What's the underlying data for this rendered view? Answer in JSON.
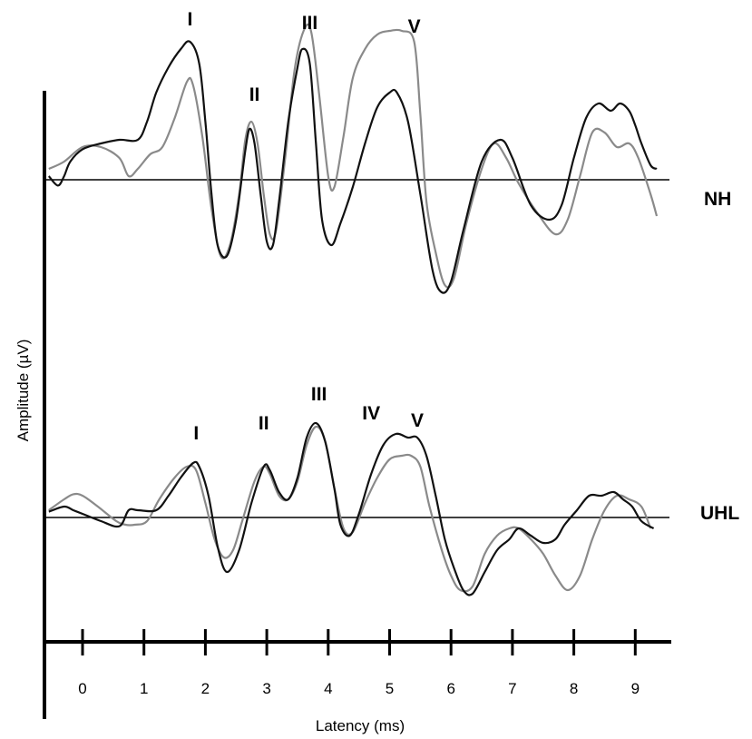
{
  "chart_data": {
    "type": "line",
    "xlabel": "Latency (ms)",
    "ylabel": "Amplitude (µV)",
    "x_ticks": [
      0,
      1,
      2,
      3,
      4,
      5,
      6,
      7,
      8,
      9
    ],
    "xlim": [
      -0.55,
      9.5
    ],
    "grid": false,
    "legend": "none",
    "colors": {
      "black_trace": "#111111",
      "gray_trace": "#8a8a8a",
      "axis": "#000000"
    },
    "panels": [
      {
        "name": "NH",
        "ylim": [
          -1.75,
          2.15
        ],
        "peak_labels": [
          {
            "text": "I",
            "x": 1.75
          },
          {
            "text": "II",
            "x": 2.8
          },
          {
            "text": "III",
            "x": 3.7
          },
          {
            "text": "V",
            "x": 5.4
          }
        ],
        "series": [
          {
            "color": "black",
            "x": [
              -0.55,
              -0.4,
              -0.3,
              -0.2,
              0.0,
              0.3,
              0.6,
              0.9,
              1.05,
              1.2,
              1.4,
              1.6,
              1.75,
              1.9,
              2.0,
              2.1,
              2.2,
              2.35,
              2.5,
              2.65,
              2.72,
              2.8,
              2.9,
              3.0,
              3.1,
              3.2,
              3.35,
              3.5,
              3.58,
              3.7,
              3.8,
              3.9,
              4.05,
              4.2,
              4.4,
              4.6,
              4.8,
              5.0,
              5.12,
              5.3,
              5.5,
              5.7,
              5.85,
              6.0,
              6.2,
              6.5,
              6.8,
              7.0,
              7.3,
              7.6,
              7.8,
              8.0,
              8.2,
              8.4,
              8.6,
              8.75,
              8.9,
              9.0,
              9.1,
              9.25,
              9.35
            ],
            "y": [
              0.05,
              -0.08,
              0.05,
              0.25,
              0.42,
              0.5,
              0.55,
              0.55,
              0.8,
              1.2,
              1.55,
              1.8,
              1.9,
              1.6,
              0.8,
              -0.2,
              -0.9,
              -1.05,
              -0.55,
              0.4,
              0.7,
              0.5,
              -0.2,
              -0.85,
              -0.9,
              -0.3,
              0.8,
              1.55,
              1.8,
              1.6,
              0.5,
              -0.55,
              -0.9,
              -0.6,
              -0.1,
              0.5,
              1.0,
              1.2,
              1.2,
              0.8,
              -0.2,
              -1.25,
              -1.55,
              -1.4,
              -0.7,
              0.25,
              0.55,
              0.3,
              -0.35,
              -0.55,
              -0.35,
              0.3,
              0.85,
              1.05,
              0.95,
              1.05,
              0.95,
              0.75,
              0.5,
              0.2,
              0.15
            ]
          },
          {
            "color": "gray",
            "x": [
              -0.55,
              -0.3,
              0.0,
              0.3,
              0.6,
              0.75,
              0.9,
              1.1,
              1.3,
              1.5,
              1.7,
              1.8,
              1.95,
              2.1,
              2.25,
              2.4,
              2.55,
              2.65,
              2.75,
              2.85,
              2.95,
              3.05,
              3.15,
              3.3,
              3.45,
              3.6,
              3.72,
              3.85,
              4.0,
              4.1,
              4.25,
              4.4,
              4.6,
              4.8,
              5.0,
              5.2,
              5.4,
              5.5,
              5.6,
              5.75,
              5.9,
              6.05,
              6.25,
              6.5,
              6.7,
              6.9,
              7.1,
              7.4,
              7.7,
              7.9,
              8.1,
              8.3,
              8.5,
              8.7,
              8.9,
              9.05,
              9.25,
              9.35
            ],
            "y": [
              0.15,
              0.25,
              0.45,
              0.45,
              0.3,
              0.05,
              0.15,
              0.35,
              0.45,
              0.85,
              1.35,
              1.3,
              0.6,
              -0.4,
              -1.05,
              -0.9,
              -0.2,
              0.55,
              0.8,
              0.5,
              -0.2,
              -0.75,
              -0.7,
              0.3,
              1.5,
              2.05,
              2.05,
              1.2,
              0.05,
              -0.1,
              0.6,
              1.4,
              1.8,
              2.0,
              2.05,
              2.05,
              1.9,
              0.9,
              -0.3,
              -1.0,
              -1.45,
              -1.35,
              -0.6,
              0.15,
              0.5,
              0.3,
              -0.05,
              -0.45,
              -0.75,
              -0.55,
              0.05,
              0.65,
              0.65,
              0.45,
              0.5,
              0.3,
              -0.2,
              -0.5
            ]
          }
        ]
      },
      {
        "name": "UHL",
        "ylim": [
          -1.25,
          1.75
        ],
        "peak_labels": [
          {
            "text": "I",
            "x": 1.85
          },
          {
            "text": "II",
            "x": 2.95
          },
          {
            "text": "III",
            "x": 3.85
          },
          {
            "text": "IV",
            "x": 4.7
          },
          {
            "text": "V",
            "x": 5.45
          }
        ],
        "series": [
          {
            "color": "black",
            "x": [
              -0.55,
              -0.3,
              -0.15,
              0.0,
              0.3,
              0.6,
              0.75,
              0.9,
              1.2,
              1.4,
              1.6,
              1.8,
              1.9,
              2.05,
              2.2,
              2.35,
              2.55,
              2.75,
              2.95,
              3.05,
              3.2,
              3.35,
              3.5,
              3.65,
              3.8,
              3.95,
              4.1,
              4.2,
              4.35,
              4.5,
              4.7,
              4.9,
              5.1,
              5.3,
              5.45,
              5.6,
              5.75,
              5.9,
              6.05,
              6.2,
              6.35,
              6.55,
              6.75,
              6.95,
              7.1,
              7.3,
              7.5,
              7.7,
              7.85,
              8.05,
              8.25,
              8.45,
              8.65,
              8.8,
              8.95,
              9.1,
              9.3
            ],
            "y": [
              0.08,
              0.15,
              0.1,
              0.05,
              -0.05,
              -0.12,
              0.1,
              0.1,
              0.1,
              0.3,
              0.55,
              0.75,
              0.7,
              0.3,
              -0.4,
              -0.75,
              -0.45,
              0.2,
              0.7,
              0.65,
              0.35,
              0.25,
              0.55,
              1.1,
              1.3,
              1.05,
              0.4,
              -0.1,
              -0.25,
              0.05,
              0.6,
              1.0,
              1.15,
              1.1,
              1.1,
              0.85,
              0.3,
              -0.3,
              -0.7,
              -1.0,
              -1.05,
              -0.75,
              -0.45,
              -0.3,
              -0.15,
              -0.25,
              -0.35,
              -0.3,
              -0.1,
              0.1,
              0.3,
              0.3,
              0.35,
              0.25,
              0.15,
              -0.05,
              -0.15
            ]
          },
          {
            "color": "gray",
            "x": [
              -0.55,
              -0.3,
              -0.15,
              0.0,
              0.25,
              0.55,
              0.7,
              0.85,
              1.05,
              1.25,
              1.5,
              1.7,
              1.85,
              2.0,
              2.15,
              2.3,
              2.45,
              2.6,
              2.8,
              2.95,
              3.05,
              3.2,
              3.35,
              3.5,
              3.65,
              3.8,
              3.95,
              4.1,
              4.25,
              4.4,
              4.6,
              4.8,
              5.0,
              5.2,
              5.35,
              5.5,
              5.65,
              5.85,
              6.0,
              6.15,
              6.35,
              6.55,
              6.75,
              6.95,
              7.1,
              7.3,
              7.5,
              7.7,
              7.9,
              8.1,
              8.3,
              8.5,
              8.7,
              8.9,
              9.1,
              9.25
            ],
            "y": [
              0.1,
              0.25,
              0.32,
              0.3,
              0.15,
              -0.05,
              -0.1,
              -0.1,
              -0.05,
              0.25,
              0.55,
              0.7,
              0.65,
              0.2,
              -0.3,
              -0.55,
              -0.45,
              -0.05,
              0.5,
              0.7,
              0.6,
              0.3,
              0.25,
              0.5,
              1.0,
              1.25,
              1.05,
              0.4,
              -0.15,
              -0.2,
              0.2,
              0.55,
              0.8,
              0.85,
              0.85,
              0.7,
              0.15,
              -0.45,
              -0.8,
              -1.0,
              -0.95,
              -0.5,
              -0.25,
              -0.15,
              -0.15,
              -0.3,
              -0.5,
              -0.8,
              -1.0,
              -0.8,
              -0.3,
              0.1,
              0.3,
              0.25,
              0.15,
              -0.15
            ]
          }
        ]
      }
    ]
  }
}
